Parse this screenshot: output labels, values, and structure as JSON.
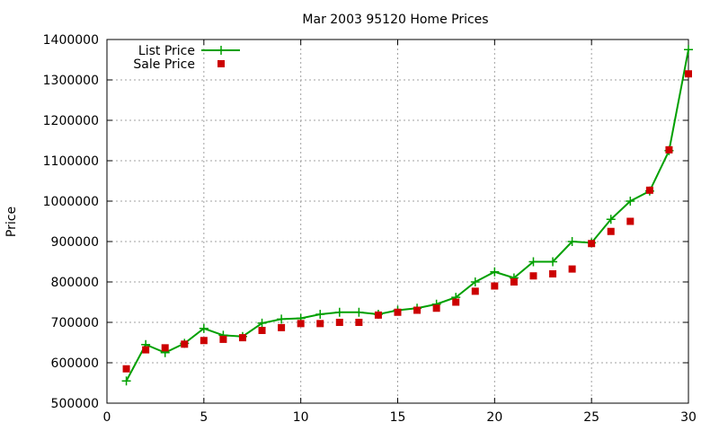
{
  "chart_data": {
    "type": "line",
    "title": "Mar 2003 95120 Home Prices",
    "xlabel": "",
    "ylabel": "Price",
    "xlim": [
      0,
      30
    ],
    "ylim": [
      500000,
      1400000
    ],
    "xticks": [
      "0",
      "5",
      "10",
      "15",
      "20",
      "25",
      "30"
    ],
    "yticks": [
      "500000",
      "600000",
      "700000",
      "800000",
      "900000",
      "1000000",
      "1100000",
      "1200000",
      "1300000",
      "1400000"
    ],
    "grid": true,
    "legend_position": "top-left",
    "x": [
      1,
      2,
      3,
      4,
      5,
      6,
      7,
      8,
      9,
      10,
      11,
      12,
      13,
      14,
      15,
      16,
      17,
      18,
      19,
      20,
      21,
      22,
      23,
      24,
      25,
      26,
      27,
      28,
      29,
      30
    ],
    "series": [
      {
        "name": "List Price",
        "style": "line with plus markers",
        "color": "#00a000",
        "values": [
          555000,
          645000,
          625000,
          648000,
          685000,
          668000,
          665000,
          698000,
          708000,
          710000,
          720000,
          725000,
          725000,
          720000,
          730000,
          735000,
          745000,
          762000,
          800000,
          825000,
          810000,
          850000,
          850000,
          900000,
          897000,
          955000,
          1000000,
          1025000,
          1125000,
          1375000
        ]
      },
      {
        "name": "Sale Price",
        "style": "square markers",
        "color": "#cc0000",
        "values": [
          585000,
          632000,
          637000,
          646000,
          655000,
          658000,
          662000,
          680000,
          687000,
          697000,
          697000,
          700000,
          700000,
          718000,
          725000,
          730000,
          735000,
          750000,
          777000,
          790000,
          800000,
          815000,
          820000,
          832000,
          895000,
          925000,
          950000,
          1027000,
          1127000,
          1315000
        ]
      }
    ]
  }
}
